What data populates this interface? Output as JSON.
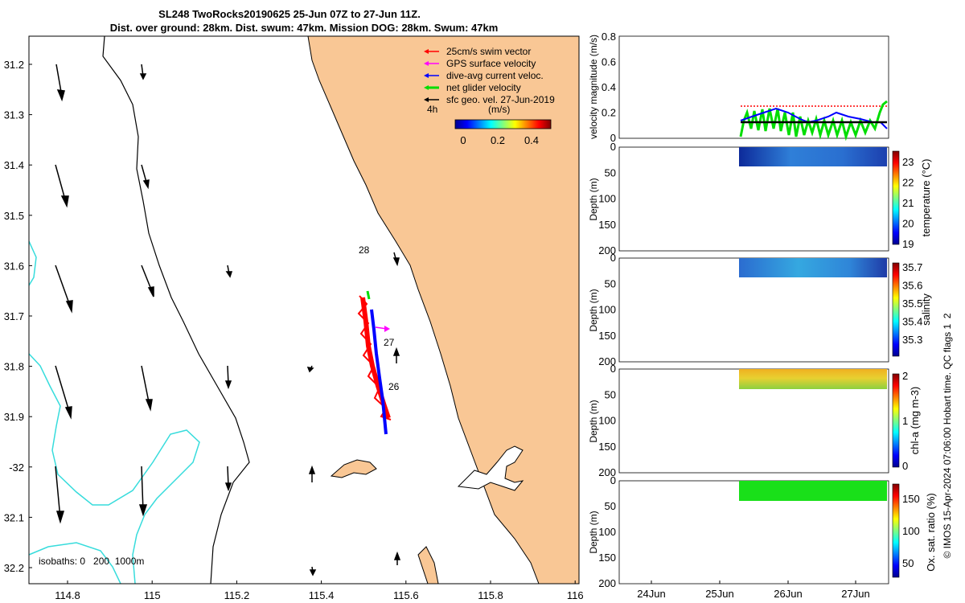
{
  "title": {
    "line1": "SL248 TwoRocks20190625 25-Jun 07Z to 27-Jun 11Z.",
    "line2": "Dist. over ground: 28km. Dist. swum: 47km. Mission DOG: 28km. Swum: 47km"
  },
  "map": {
    "lat_ticks": [
      "31.2",
      "31.3",
      "31.4",
      "31.5",
      "31.6",
      "31.7",
      "31.8",
      "31.9",
      "-32",
      "32.1",
      "32.2"
    ],
    "lon_ticks": [
      "114.8",
      "115",
      "115.2",
      "115.4",
      "115.6",
      "115.8",
      "116"
    ],
    "legend": [
      {
        "label": "25cm/s swim vector",
        "color": "#ff0000"
      },
      {
        "label": "GPS surface velocity",
        "color": "#ff00ff"
      },
      {
        "label": "dive-avg current veloc.",
        "color": "#0000ff"
      },
      {
        "label": "net glider velocity",
        "color": "#00dd00"
      },
      {
        "label": "sfc geo. vel. 27-Jun-2019",
        "color": "#000000"
      }
    ],
    "hours_label": "4h",
    "colorbar_unit": "(m/s)",
    "colorbar_ticks": [
      "0",
      "0.2",
      "0.4"
    ],
    "day_labels": [
      "28",
      "27",
      "26"
    ],
    "isobaths_label": "isobaths: 0   200  1000m",
    "colors": {
      "land": "#f9c795",
      "isobath200": "#000000",
      "isobath1000": "#37dcdc",
      "track_swim": "#ff0000",
      "track_current": "#0000ff",
      "track_net": "#00dd00",
      "gps": "#ff00ff"
    }
  },
  "right_panels": {
    "velocity": {
      "ylabel": "velocity magnitude (m/s)",
      "yticks": [
        "0",
        "0.2",
        "0.4",
        "0.6",
        "0.8"
      ]
    },
    "temperature": {
      "ylabel": "Depth (m)",
      "cblabel": "temperature (°C)",
      "cbticks": [
        "23",
        "22",
        "21",
        "20",
        "19"
      ]
    },
    "salinity": {
      "ylabel": "Depth (m)",
      "cblabel": "salinity",
      "cbticks": [
        "35.7",
        "35.6",
        "35.5",
        "35.4",
        "35.3"
      ]
    },
    "chla": {
      "ylabel": "Depth (m)",
      "cblabel": "chl-a (mg m-3)",
      "cbticks": [
        "2",
        "1",
        "0"
      ]
    },
    "oxygen": {
      "ylabel": "Depth (m)",
      "cblabel": "Ox. sat. ratio (%)",
      "cbticks": [
        "150",
        "100",
        "50"
      ]
    },
    "depth_ticks": [
      "0",
      "50",
      "100",
      "150",
      "200"
    ],
    "time_ticks": [
      "24Jun",
      "25Jun",
      "26Jun",
      "27Jun"
    ]
  },
  "credit": "© IMOS 15-Apr-2024 07:06:00 Hobart time. QC flags 1  2"
}
